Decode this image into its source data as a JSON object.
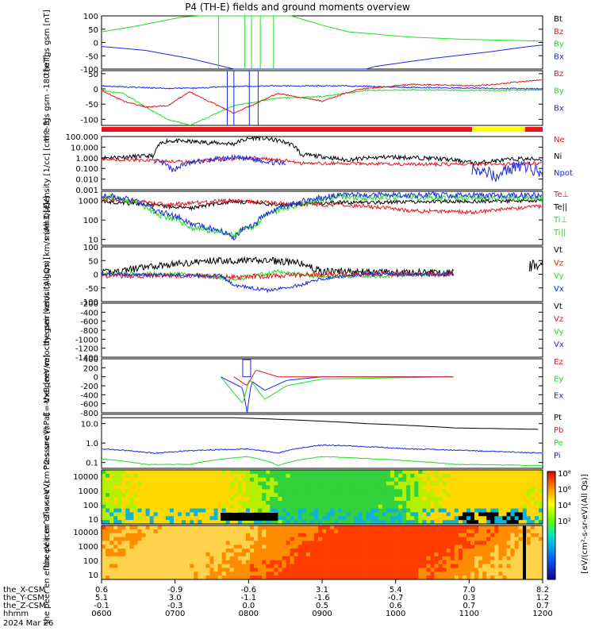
{
  "title": "P4 (TH-E) fields and ground moments overview",
  "colors": {
    "black": "#000000",
    "red": "#e8141c",
    "green": "#1ee01e",
    "blue": "#1a28e6",
    "yellow": "#ffff00"
  },
  "chart_data": [
    {
      "type": "line",
      "ylabel": "the fgs gsm [nT]",
      "ylim": [
        -100,
        100
      ],
      "ticks": [
        "100",
        "50",
        "0",
        "-50",
        "-100"
      ],
      "legend": [
        "Bt",
        "Bz",
        "By",
        "Bx"
      ],
      "series": [
        {
          "name": "Bx",
          "values": [
            [
              0,
              -15
            ],
            [
              0.1,
              -30
            ],
            [
              0.2,
              -60
            ],
            [
              0.3,
              -100
            ],
            [
              0.6,
              -100
            ],
            [
              0.62,
              -90
            ],
            [
              0.75,
              -60
            ],
            [
              0.88,
              -35
            ],
            [
              0.97,
              -15
            ],
            [
              1,
              -10
            ]
          ]
        },
        {
          "name": "By",
          "values": [
            [
              0,
              40
            ],
            [
              0.08,
              62
            ],
            [
              0.18,
              95
            ],
            [
              0.22,
              100
            ],
            [
              0.43,
              100
            ],
            [
              0.5,
              65
            ],
            [
              0.56,
              40
            ],
            [
              0.7,
              20
            ],
            [
              0.82,
              12
            ],
            [
              1,
              5
            ]
          ]
        }
      ]
    },
    {
      "type": "line",
      "ylabel": "the fgs gsm -180 [nT]",
      "ylim": [
        -120,
        60
      ],
      "ticks": [
        "50",
        "0",
        "-50",
        "-100"
      ],
      "legend": [
        "Bz",
        "By",
        "Bx"
      ],
      "series": [
        {
          "name": "Bx",
          "values": [
            [
              0,
              10
            ],
            [
              0.08,
              5
            ],
            [
              0.14,
              2
            ],
            [
              0.2,
              2
            ],
            [
              0.3,
              8
            ],
            [
              0.4,
              10
            ],
            [
              0.55,
              10
            ],
            [
              0.7,
              5
            ],
            [
              0.8,
              3
            ],
            [
              1,
              0
            ]
          ]
        },
        {
          "name": "By",
          "values": [
            [
              0,
              -5
            ],
            [
              0.05,
              -15
            ],
            [
              0.1,
              -60
            ],
            [
              0.15,
              -100
            ],
            [
              0.2,
              -120
            ],
            [
              0.3,
              -55
            ],
            [
              0.4,
              -30
            ],
            [
              0.5,
              -25
            ],
            [
              0.6,
              -5
            ],
            [
              0.7,
              -3
            ],
            [
              0.85,
              -5
            ],
            [
              1,
              -4
            ]
          ]
        },
        {
          "name": "Bz",
          "values": [
            [
              0,
              -5
            ],
            [
              0.05,
              -40
            ],
            [
              0.1,
              -60
            ],
            [
              0.15,
              -55
            ],
            [
              0.2,
              -10
            ],
            [
              0.3,
              -80
            ],
            [
              0.4,
              -15
            ],
            [
              0.5,
              -40
            ],
            [
              0.58,
              -2
            ],
            [
              0.7,
              15
            ],
            [
              0.85,
              10
            ],
            [
              1,
              30
            ]
          ]
        }
      ]
    },
    {
      "type": "line",
      "ylabel": "Density [1/cc] [cm^-3]",
      "ylim": [
        0.001,
        100
      ],
      "log": true,
      "ticks": [
        "100.000",
        "10.000",
        "1.000",
        "0.100",
        "0.010",
        "0.001"
      ],
      "legend": [
        "Ne",
        "Ni",
        "Npot"
      ]
    },
    {
      "type": "line",
      "ylabel": "mom3 [eV]",
      "ylim": [
        5,
        3000
      ],
      "log": true,
      "ticks": [
        "1000",
        "100",
        "10"
      ],
      "legend": [
        "Te⊥",
        "Te||",
        "Ti⊥",
        "Ti||"
      ]
    },
    {
      "type": "line",
      "ylabel": "the peir velocity gsm [km/s (All Qs)]",
      "ylim": [
        -100,
        100
      ],
      "ticks": [
        "100",
        "50",
        "0",
        "-50",
        "-100"
      ],
      "legend": [
        "Vt",
        "Vz",
        "Vy",
        "Vx"
      ]
    },
    {
      "type": "line",
      "ylabel": "the peer velocity gsm [km/s (All Qs)]",
      "ylim": [
        -1400,
        -200
      ],
      "ticks": [
        "-200",
        "-400",
        "-600",
        "-800",
        "-1000",
        "-1200",
        "-1400"
      ],
      "legend": [
        "Vt",
        "Vz",
        "Vy",
        "Vx"
      ]
    },
    {
      "type": "line",
      "ylabel": "E=-VxB [mV/m]",
      "ylim": [
        -800,
        400
      ],
      "ticks": [
        "400",
        "200",
        "0",
        "-200",
        "-400",
        "-600",
        "-800"
      ],
      "legend": [
        "Ez",
        "Ey",
        "Ex"
      ]
    },
    {
      "type": "line",
      "ylabel": "Pressure [nPa]",
      "ylim": [
        0.05,
        30
      ],
      "log": true,
      "ticks": [
        "10.0",
        "1.0",
        "0.1"
      ],
      "legend": [
        "Pt",
        "Pb",
        "Pe",
        "Pi"
      ]
    },
    {
      "type": "heatmap",
      "ylabel": "the peir en eflux eV (cm^2-s-sr-eV)",
      "ticks": [
        "10000",
        "1000",
        "100",
        "10"
      ]
    },
    {
      "type": "heatmap",
      "ylabel": "the peer en eflux eV (cm^2-s-sr-eV)",
      "ticks": [
        "10000",
        "1000",
        "100",
        "10"
      ]
    }
  ],
  "colorbar": {
    "ticks": [
      "10⁸",
      "10⁶",
      "10⁴",
      "10²"
    ],
    "label": "[eV/(cm²-s-sr-eV)]",
    "label2": "[eV/(cm²-s-sr-eV)(All Qs)]"
  },
  "xaxis": {
    "rows": [
      {
        "name": "the_X-CSM",
        "values": [
          "0.6",
          "-0.9",
          "-0.6",
          "3.1",
          "5.4",
          "7.0",
          "8.2"
        ]
      },
      {
        "name": "the_Y-CSM",
        "values": [
          "5.1",
          "3.0",
          "-1.1",
          "-1.6",
          "-0.7",
          "0.3",
          "1.2"
        ]
      },
      {
        "name": "the_Z-CSM",
        "values": [
          "-0.1",
          "-0.3",
          "0.0",
          "0.5",
          "0.6",
          "0.7",
          "0.7"
        ]
      },
      {
        "name": "hhmm",
        "values": [
          "0600",
          "0700",
          "0800",
          "0900",
          "1000",
          "1100",
          "1200"
        ]
      }
    ],
    "date": "2024 Mar 26"
  }
}
